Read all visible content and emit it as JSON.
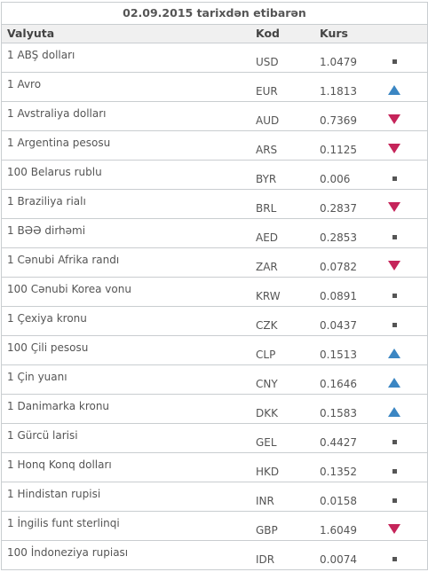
{
  "title": "02.09.2015 tarixdən etibarən",
  "headers": {
    "currency": "Valyuta",
    "code": "Kod",
    "rate": "Kurs"
  },
  "colors": {
    "up": "#3b86c3",
    "down": "#c5245a",
    "flat": "#555555",
    "border": "#c9cdd0",
    "header_bg": "#f0f0f0"
  },
  "rows": [
    {
      "name": "1 ABŞ dolları",
      "code": "USD",
      "rate": "1.0479",
      "trend": "flat"
    },
    {
      "name": "1 Avro",
      "code": "EUR",
      "rate": "1.1813",
      "trend": "up"
    },
    {
      "name": "1 Avstraliya dolları",
      "code": "AUD",
      "rate": "0.7369",
      "trend": "down"
    },
    {
      "name": "1 Argentina pesosu",
      "code": "ARS",
      "rate": "0.1125",
      "trend": "down"
    },
    {
      "name": "100 Belarus rublu",
      "code": "BYR",
      "rate": "0.006",
      "trend": "flat"
    },
    {
      "name": "1 Braziliya rialı",
      "code": "BRL",
      "rate": "0.2837",
      "trend": "down"
    },
    {
      "name": "1 BƏƏ dirhəmi",
      "code": "AED",
      "rate": "0.2853",
      "trend": "flat"
    },
    {
      "name": "1 Cənubi Afrika randı",
      "code": "ZAR",
      "rate": "0.0782",
      "trend": "down"
    },
    {
      "name": "100 Cənubi Korea vonu",
      "code": "KRW",
      "rate": "0.0891",
      "trend": "flat"
    },
    {
      "name": "1 Çexiya kronu",
      "code": "CZK",
      "rate": "0.0437",
      "trend": "flat"
    },
    {
      "name": "100 Çili pesosu",
      "code": "CLP",
      "rate": "0.1513",
      "trend": "up"
    },
    {
      "name": "1 Çin yuanı",
      "code": "CNY",
      "rate": "0.1646",
      "trend": "up"
    },
    {
      "name": "1 Danimarka kronu",
      "code": "DKK",
      "rate": "0.1583",
      "trend": "up"
    },
    {
      "name": "1 Gürcü larisi",
      "code": "GEL",
      "rate": "0.4427",
      "trend": "flat"
    },
    {
      "name": "1 Honq Konq dolları",
      "code": "HKD",
      "rate": "0.1352",
      "trend": "flat"
    },
    {
      "name": "1 Hindistan rupisi",
      "code": "INR",
      "rate": "0.0158",
      "trend": "flat"
    },
    {
      "name": "1 İngilis funt sterlinqi",
      "code": "GBP",
      "rate": "1.6049",
      "trend": "down"
    },
    {
      "name": "100 İndoneziya rupiası",
      "code": "IDR",
      "rate": "0.0074",
      "trend": "flat"
    }
  ]
}
